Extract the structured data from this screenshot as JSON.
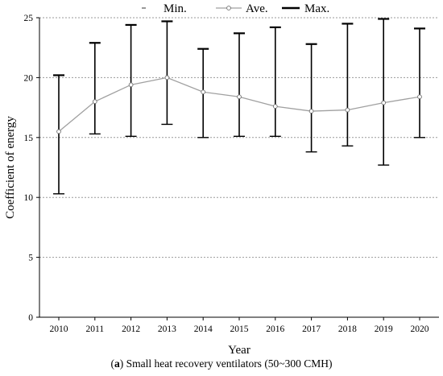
{
  "chart_data": {
    "type": "line",
    "xlabel": "Year",
    "ylabel": "Coefficient of energy",
    "ylim": [
      0,
      25
    ],
    "yticks": [
      0,
      5,
      10,
      15,
      20,
      25
    ],
    "categories": [
      "2010",
      "2011",
      "2012",
      "2013",
      "2014",
      "2015",
      "2016",
      "2017",
      "2018",
      "2019",
      "2020"
    ],
    "series": [
      {
        "name": "Min.",
        "values": [
          10.3,
          15.3,
          15.1,
          16.1,
          15.0,
          15.1,
          15.1,
          13.8,
          14.3,
          12.7,
          15.0
        ]
      },
      {
        "name": "Ave.",
        "values": [
          15.5,
          18.0,
          19.4,
          20.0,
          18.8,
          18.4,
          17.6,
          17.2,
          17.3,
          17.9,
          18.4
        ]
      },
      {
        "name": "Max.",
        "values": [
          20.2,
          22.9,
          24.4,
          24.7,
          22.4,
          23.7,
          24.2,
          22.8,
          24.5,
          24.9,
          24.1
        ]
      }
    ],
    "grid": "horizontal dotted",
    "legend_position": "top",
    "colors": {
      "ave_line": "#a0a0a0",
      "error_bar": "#000000",
      "grid": "#9a9a9a"
    }
  },
  "caption": {
    "label": "(a)",
    "label_letter": "a",
    "text": " Small heat recovery ventilators (50~300 CMH)"
  }
}
